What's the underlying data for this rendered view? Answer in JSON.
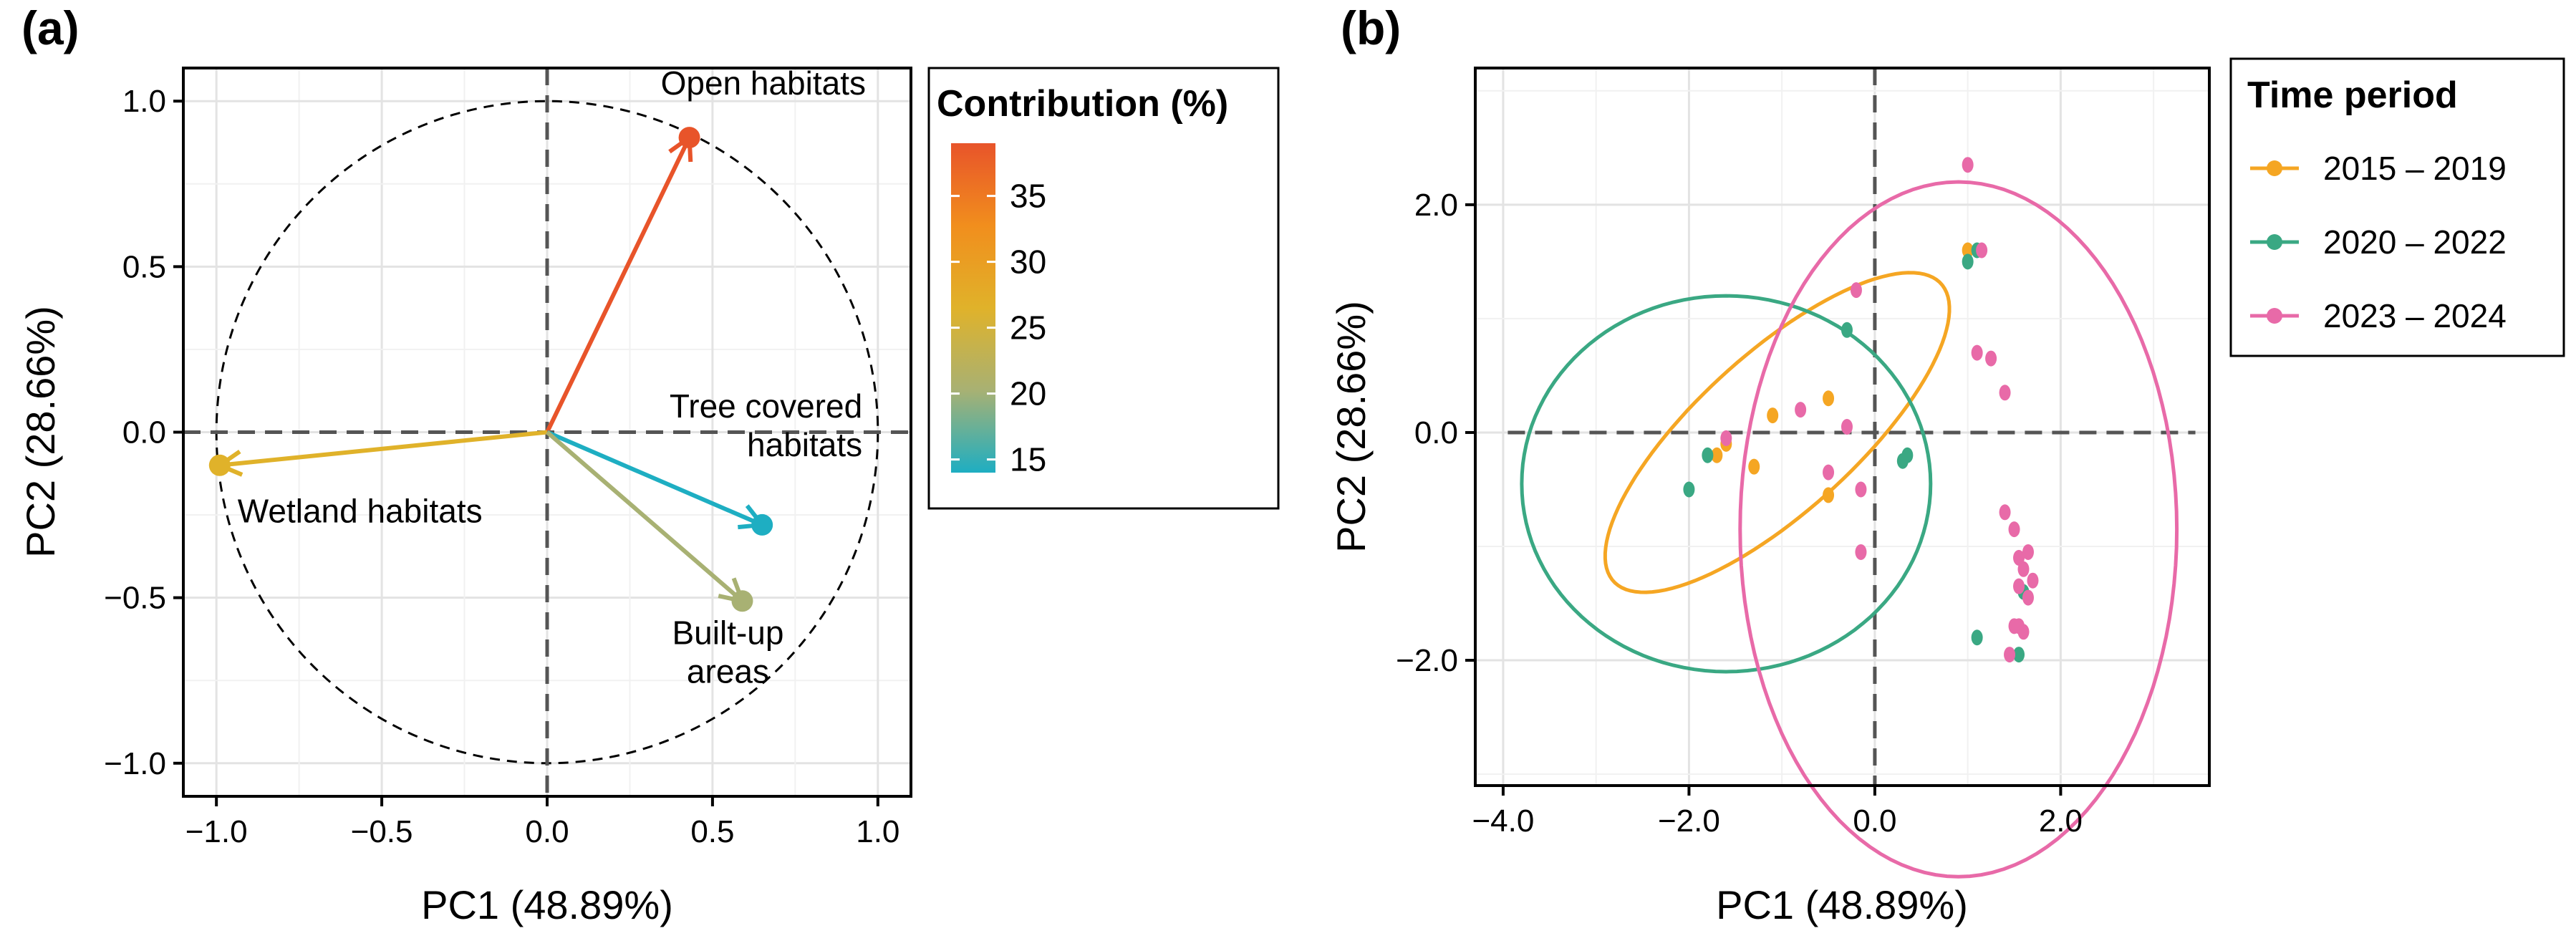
{
  "chart_data": [
    {
      "type": "scatter",
      "subtype": "pca-variable-correlation-circle",
      "panel_label": "(a)",
      "xlabel": "PC1 (48.89%)",
      "ylabel": "PC2 (28.66%)",
      "xlim": [
        -1.1,
        1.1
      ],
      "ylim": [
        -1.1,
        1.1
      ],
      "x_ticks": [
        -1.0,
        -0.5,
        0.0,
        0.5,
        1.0
      ],
      "x_tick_labels": [
        "−1.0",
        "−0.5",
        "0.0",
        "0.5",
        "1.0"
      ],
      "y_ticks": [
        -1.0,
        -0.5,
        0.0,
        0.5,
        1.0
      ],
      "y_tick_labels": [
        "−1.0",
        "−0.5",
        "0.0",
        "0.5",
        "1.0"
      ],
      "grid": true,
      "unit_circle": true,
      "variables": [
        {
          "name": "Open habitats",
          "x": 0.43,
          "y": 0.89,
          "contribution": 38.5,
          "color": "#e8542a"
        },
        {
          "name": "Wetland habitats",
          "x": -0.99,
          "y": -0.1,
          "contribution": 27.5,
          "color": "#e0b22a"
        },
        {
          "name": "Tree covered habitats",
          "x": 0.65,
          "y": -0.28,
          "contribution": 14.5,
          "color": "#1eaec2"
        },
        {
          "name": "Built-up areas",
          "x": 0.59,
          "y": -0.51,
          "contribution": 20.0,
          "color": "#a8b173"
        }
      ],
      "label_lines": {
        "Open habitats": [
          "Open habitats"
        ],
        "Wetland habitats": [
          "Wetland habitats"
        ],
        "Tree covered habitats": [
          "Tree covered",
          "habitats"
        ],
        "Built-up areas": [
          "Built-up",
          "areas"
        ]
      },
      "legend": {
        "title": "Contribution (%)",
        "placement": "right",
        "colorbar_range": [
          14,
          39
        ],
        "colorbar_ticks": [
          15,
          20,
          25,
          30,
          35
        ],
        "colorbar_tick_labels": [
          "15",
          "20",
          "25",
          "30",
          "35"
        ],
        "colors": [
          "#1eaec2",
          "#a8b173",
          "#e0b22a",
          "#f18e1d",
          "#e8542a"
        ]
      }
    },
    {
      "type": "scatter",
      "subtype": "pca-individuals-with-ellipses",
      "panel_label": "(b)",
      "xlabel": "PC1 (48.89%)",
      "ylabel": "PC2 (28.66%)",
      "xlim": [
        -4.3,
        3.6
      ],
      "ylim": [
        -3.1,
        3.2
      ],
      "x_ticks": [
        -4.0,
        -2.0,
        0.0,
        2.0
      ],
      "x_tick_labels": [
        "−4.0",
        "−2.0",
        "0.0",
        "2.0"
      ],
      "y_ticks": [
        -2.0,
        0.0,
        2.0
      ],
      "y_tick_labels": [
        "−2.0",
        "0.0",
        "2.0"
      ],
      "grid": true,
      "legend": {
        "title": "Time period",
        "placement": "right"
      },
      "series": [
        {
          "name": "2015 – 2019",
          "color": "#f5a623",
          "points": [
            [
              1.0,
              1.6
            ],
            [
              -0.5,
              0.3
            ],
            [
              -1.1,
              0.15
            ],
            [
              -1.6,
              -0.1
            ],
            [
              -1.7,
              -0.2
            ],
            [
              -1.3,
              -0.3
            ],
            [
              -0.5,
              -0.55
            ]
          ],
          "ellipse": {
            "cx": -1.05,
            "cy": 0.0,
            "rx": 2.2,
            "ry": 0.75,
            "angle_deg": 35
          }
        },
        {
          "name": "2020 – 2022",
          "color": "#3aa883",
          "points": [
            [
              1.1,
              1.6
            ],
            [
              1.0,
              1.5
            ],
            [
              -0.3,
              0.9
            ],
            [
              -1.8,
              -0.2
            ],
            [
              -2.0,
              -0.5
            ],
            [
              0.35,
              -0.2
            ],
            [
              0.3,
              -0.25
            ],
            [
              1.6,
              -1.4
            ],
            [
              1.1,
              -1.8
            ],
            [
              1.55,
              -1.95
            ]
          ],
          "ellipse": {
            "cx": -1.6,
            "cy": -0.45,
            "rx": 2.2,
            "ry": 1.65,
            "angle_deg": 0
          }
        },
        {
          "name": "2023 – 2024",
          "color": "#e86aa8",
          "points": [
            [
              1.0,
              2.35
            ],
            [
              1.15,
              1.6
            ],
            [
              1.1,
              0.7
            ],
            [
              1.25,
              0.65
            ],
            [
              1.4,
              0.35
            ],
            [
              -0.2,
              1.25
            ],
            [
              -0.3,
              0.05
            ],
            [
              -0.8,
              0.2
            ],
            [
              -1.6,
              -0.05
            ],
            [
              -0.5,
              -0.35
            ],
            [
              -0.15,
              -0.5
            ],
            [
              -0.15,
              -1.05
            ],
            [
              1.4,
              -0.7
            ],
            [
              1.5,
              -0.85
            ],
            [
              1.55,
              -1.1
            ],
            [
              1.6,
              -1.2
            ],
            [
              1.65,
              -1.05
            ],
            [
              1.7,
              -1.3
            ],
            [
              1.55,
              -1.35
            ],
            [
              1.65,
              -1.45
            ],
            [
              1.5,
              -1.7
            ],
            [
              1.6,
              -1.75
            ],
            [
              1.45,
              -1.95
            ],
            [
              1.55,
              -1.7
            ]
          ],
          "ellipse": {
            "cx": 0.9,
            "cy": -0.85,
            "rx": 2.35,
            "ry": 3.05,
            "angle_deg": 0
          }
        }
      ]
    }
  ]
}
